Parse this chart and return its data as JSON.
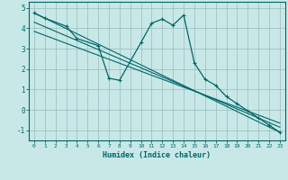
{
  "xlabel": "Humidex (Indice chaleur)",
  "bg_color": "#c8e8e8",
  "grid_color": "#99bbbb",
  "line_color": "#006666",
  "xlim": [
    -0.5,
    23.5
  ],
  "ylim": [
    -1.5,
    5.3
  ],
  "xticks": [
    0,
    1,
    2,
    3,
    4,
    5,
    6,
    7,
    8,
    9,
    10,
    11,
    12,
    13,
    14,
    15,
    16,
    17,
    18,
    19,
    20,
    21,
    22,
    23
  ],
  "yticks": [
    -1,
    0,
    1,
    2,
    3,
    4,
    5
  ],
  "curve1_x": [
    0,
    1,
    3,
    4,
    6,
    7,
    8,
    10,
    11,
    12,
    13,
    14,
    15,
    16,
    17,
    18,
    19,
    20,
    21,
    22,
    23
  ],
  "curve1_y": [
    4.75,
    4.5,
    4.1,
    3.5,
    3.15,
    1.55,
    1.45,
    3.3,
    4.25,
    4.45,
    4.15,
    4.65,
    2.3,
    1.5,
    1.2,
    0.65,
    0.3,
    -0.05,
    -0.4,
    -0.75,
    -1.1
  ],
  "line1_x": [
    0,
    23
  ],
  "line1_y": [
    4.75,
    -1.1
  ],
  "line2_x": [
    0,
    23
  ],
  "line2_y": [
    4.3,
    -0.85
  ],
  "line3_x": [
    0,
    23
  ],
  "line3_y": [
    3.85,
    -0.65
  ]
}
